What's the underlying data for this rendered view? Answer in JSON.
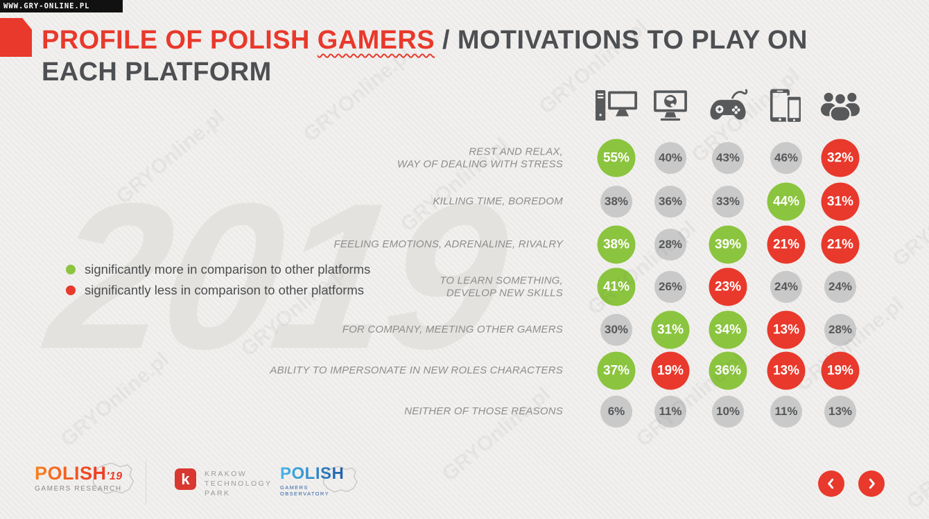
{
  "meta": {
    "site_bar": "WWW.GRY-ONLINE.PL",
    "tile_watermark": "GRYOnline.pl",
    "year_watermark": "2019"
  },
  "colors": {
    "accent_red": "#e8392c",
    "green": "#8bc43e",
    "circle_gray": "#c9c9c9",
    "title_dark": "#4d4f52"
  },
  "header": {
    "title_red_prefix": "PROFILE OF POLISH",
    "title_red_word": "GAMERS",
    "title_dark_rest": "/ MOTIVATIONS TO PLAY ON",
    "title_line2": "EACH PLATFORM"
  },
  "legend": {
    "items": [
      {
        "state": "more",
        "color": "#8bc43e",
        "label": "significantly more in comparison to other platforms"
      },
      {
        "state": "less",
        "color": "#e8392c",
        "label": "significantly less in comparison to other platforms"
      }
    ]
  },
  "chart_data": {
    "type": "heatmap",
    "title": "PROFILE OF POLISH GAMERS / MOTIVATIONS TO PLAY ON EACH PLATFORM",
    "unit": "%",
    "columns": [
      "desktop-pc-icon",
      "browser-games-icon",
      "console-icon",
      "mobile-icon",
      "social-games-icon"
    ],
    "legend_position": "left",
    "state_meaning": {
      "more": "significantly more in comparison to other platforms",
      "less": "significantly less in comparison to other platforms",
      "neutral": "no significant difference"
    },
    "rows": [
      {
        "label": [
          "REST AND RELAX,",
          "WAY OF DEALING WITH STRESS"
        ],
        "values": [
          55,
          40,
          43,
          46,
          32
        ],
        "states": [
          "more",
          "neutral",
          "neutral",
          "neutral",
          "less"
        ]
      },
      {
        "label": [
          "KILLING TIME, BOREDOM"
        ],
        "values": [
          38,
          36,
          33,
          44,
          31
        ],
        "states": [
          "neutral",
          "neutral",
          "neutral",
          "more",
          "less"
        ]
      },
      {
        "label": [
          "FEELING EMOTIONS, ADRENALINE, RIVALRY"
        ],
        "values": [
          38,
          28,
          39,
          21,
          21
        ],
        "states": [
          "more",
          "neutral",
          "more",
          "less",
          "less"
        ]
      },
      {
        "label": [
          "TO LEARN SOMETHING,",
          "DEVELOP NEW SKILLS"
        ],
        "values": [
          41,
          26,
          23,
          24,
          24
        ],
        "states": [
          "more",
          "neutral",
          "less",
          "neutral",
          "neutral"
        ]
      },
      {
        "label": [
          "FOR COMPANY, MEETING OTHER GAMERS"
        ],
        "values": [
          30,
          31,
          34,
          13,
          28
        ],
        "states": [
          "neutral",
          "more",
          "more",
          "less",
          "neutral"
        ]
      },
      {
        "label": [
          "ABILITY TO IMPERSONATE IN NEW ROLES CHARACTERS"
        ],
        "values": [
          37,
          19,
          36,
          13,
          19
        ],
        "states": [
          "more",
          "less",
          "more",
          "less",
          "less"
        ]
      },
      {
        "label": [
          "NEITHER OF THOSE REASONS"
        ],
        "values": [
          6,
          11,
          10,
          11,
          13
        ],
        "states": [
          "neutral",
          "neutral",
          "neutral",
          "neutral",
          "neutral"
        ]
      }
    ]
  },
  "footer": {
    "research": {
      "name": "POLISH",
      "year": "'19",
      "sub": "GAMERS RESEARCH"
    },
    "ktp": {
      "letter": "k",
      "line1": "KRAKOW",
      "line2": "TECHNOLOGY",
      "line3": "PARK"
    },
    "observatory": {
      "name": "POLISH",
      "sub": "GAMERS OBSERVATORY"
    }
  }
}
